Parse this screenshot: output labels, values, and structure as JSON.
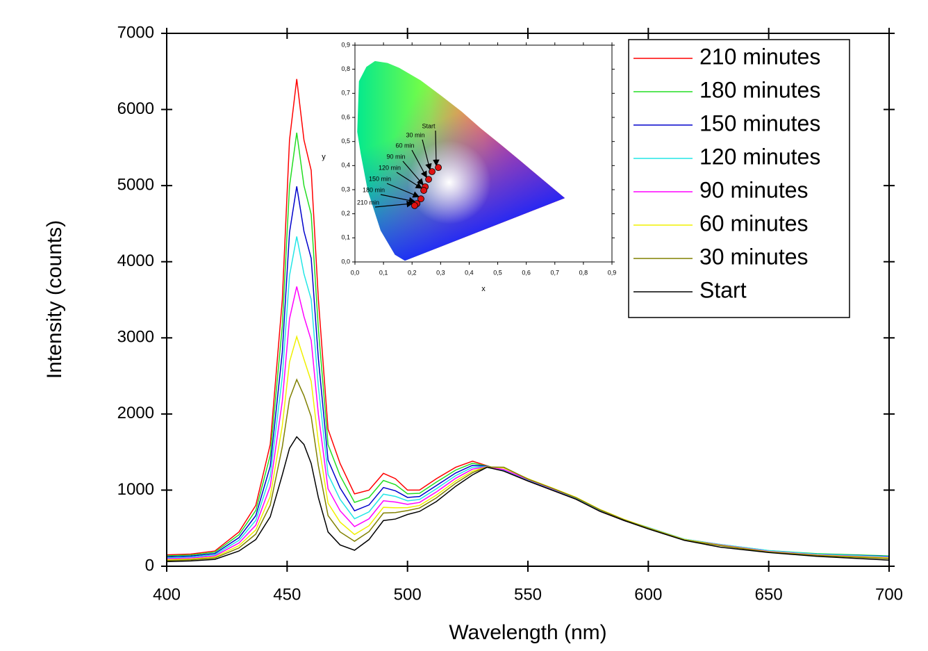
{
  "chart_data": [
    {
      "type": "line",
      "xlabel": "Wavelength (nm)",
      "ylabel": "Intensity (counts)",
      "x": [
        400,
        410,
        420,
        430,
        437,
        443,
        448,
        451,
        454,
        457,
        460,
        463,
        467,
        472,
        478,
        484,
        490,
        495,
        500,
        505,
        512,
        520,
        527,
        533,
        540,
        550,
        560,
        570,
        580,
        590,
        600,
        615,
        630,
        650,
        670,
        700
      ],
      "series": [
        {
          "name": "210 minutes",
          "color": "#ff0000",
          "values": [
            150,
            160,
            200,
            450,
            800,
            1600,
            3500,
            5600,
            6400,
            5600,
            5200,
            3500,
            1800,
            1350,
            950,
            1000,
            1220,
            1150,
            1000,
            1000,
            1150,
            1300,
            1380,
            1320,
            1250,
            1120,
            1000,
            880,
            720,
            600,
            500,
            350,
            280,
            200,
            160,
            130
          ]
        },
        {
          "name": "180 minutes",
          "color": "#22dd22",
          "values": [
            137,
            147,
            184,
            413,
            733,
            1458,
            3155,
            4993,
            5695,
            5000,
            4623,
            3110,
            1598,
            1190,
            839,
            903,
            1127,
            1071,
            952,
            958,
            1105,
            1263,
            1353,
            1317,
            1260,
            1130,
            1010,
            890,
            730,
            605,
            505,
            355,
            285,
            205,
            165,
            135
          ]
        },
        {
          "name": "150 minutes",
          "color": "#0000cc",
          "values": [
            123,
            133,
            167,
            375,
            665,
            1315,
            2810,
            4385,
            4990,
            4400,
            4045,
            2720,
            1395,
            1029,
            728,
            805,
            1034,
            991,
            904,
            916,
            1060,
            1225,
            1326,
            1314,
            1255,
            1125,
            1005,
            885,
            725,
            600,
            500,
            350,
            280,
            200,
            160,
            130
          ]
        },
        {
          "name": "120 minutes",
          "color": "#22e6e6",
          "values": [
            110,
            120,
            152,
            340,
            602,
            1182,
            2488,
            3818,
            4332,
            3840,
            3506,
            2356,
            1206,
            879,
            624,
            714,
            947,
            917,
            859,
            877,
            1018,
            1190,
            1301,
            1311,
            1265,
            1135,
            1015,
            895,
            735,
            610,
            510,
            355,
            285,
            205,
            160,
            125
          ]
        },
        {
          "name": "90 minutes",
          "color": "#ff00ff",
          "values": [
            98,
            108,
            136,
            305,
            539,
            1049,
            2166,
            3251,
            3674,
            3280,
            2967,
            1992,
            1017,
            729,
            521,
            623,
            860,
            843,
            814,
            838,
            976,
            1155,
            1276,
            1308,
            1270,
            1140,
            1020,
            900,
            740,
            610,
            505,
            350,
            280,
            195,
            150,
            115
          ]
        },
        {
          "name": "60 minutes",
          "color": "#f0f000",
          "values": [
            85,
            95,
            121,
            270,
            476,
            916,
            1844,
            2684,
            3016,
            2720,
            2428,
            1628,
            828,
            580,
            417,
            532,
            774,
            768,
            770,
            798,
            934,
            1120,
            1250,
            1306,
            1290,
            1150,
            1030,
            905,
            745,
            615,
            505,
            350,
            275,
            190,
            145,
            110
          ]
        },
        {
          "name": "30 minutes",
          "color": "#808000",
          "values": [
            74,
            84,
            108,
            240,
            422,
            802,
            1568,
            2198,
            2452,
            2240,
            1966,
            1316,
            666,
            451,
            328,
            454,
            699,
            705,
            731,
            765,
            898,
            1090,
            1229,
            1303,
            1300,
            1145,
            1025,
            900,
            740,
            610,
            500,
            345,
            270,
            185,
            140,
            100
          ]
        },
        {
          "name": "Start",
          "color": "#000000",
          "values": [
            60,
            70,
            90,
            200,
            350,
            650,
            1200,
            1550,
            1700,
            1600,
            1350,
            900,
            450,
            280,
            210,
            350,
            600,
            620,
            680,
            720,
            850,
            1050,
            1200,
            1300,
            1250,
            1120,
            1000,
            880,
            720,
            600,
            490,
            340,
            250,
            180,
            130,
            80
          ]
        }
      ],
      "xlim": [
        400,
        700
      ],
      "xticks": [
        400,
        450,
        500,
        550,
        600,
        650,
        700
      ],
      "ylim": [
        0,
        7000
      ],
      "yticks": [
        0,
        1000,
        2000,
        3000,
        4000,
        5000,
        6000,
        7000
      ],
      "legend": "upper right"
    },
    {
      "type": "scatter",
      "xlabel": "x",
      "ylabel": "y",
      "color": "#dd1111",
      "x": [
        0.292,
        0.27,
        0.258,
        0.246,
        0.241,
        0.231,
        0.217,
        0.209
      ],
      "y": [
        0.392,
        0.375,
        0.343,
        0.312,
        0.297,
        0.262,
        0.242,
        0.234
      ],
      "point_labels": [
        "Start",
        "30 min",
        "60 min",
        "90 min",
        "120 min",
        "150 min",
        "180 min",
        "210 min"
      ],
      "xlim": [
        0,
        0.9
      ],
      "ylim": [
        0,
        0.9
      ],
      "xticks": [
        {
          "value": 0,
          "label": "0,0"
        },
        {
          "value": 0.1,
          "label": "0,1"
        },
        {
          "value": 0.2,
          "label": "0,2"
        },
        {
          "value": 0.3,
          "label": "0,3"
        },
        {
          "value": 0.4,
          "label": "0,4"
        },
        {
          "value": 0.5,
          "label": "0,5"
        },
        {
          "value": 0.6,
          "label": "0,6"
        },
        {
          "value": 0.7,
          "label": "0,7"
        },
        {
          "value": 0.8,
          "label": "0,8"
        },
        {
          "value": 0.9,
          "label": "0,9"
        }
      ],
      "yticks": [
        {
          "value": 0,
          "label": "0,0"
        },
        {
          "value": 0.1,
          "label": "0,1"
        },
        {
          "value": 0.2,
          "label": "0,2"
        },
        {
          "value": 0.3,
          "label": "0,3"
        },
        {
          "value": 0.4,
          "label": "0,4"
        },
        {
          "value": 0.5,
          "label": "0,5"
        },
        {
          "value": 0.6,
          "label": "0,6"
        },
        {
          "value": 0.7,
          "label": "0,7"
        },
        {
          "value": 0.8,
          "label": "0,8"
        },
        {
          "value": 0.9,
          "label": "0,9"
        }
      ]
    }
  ]
}
